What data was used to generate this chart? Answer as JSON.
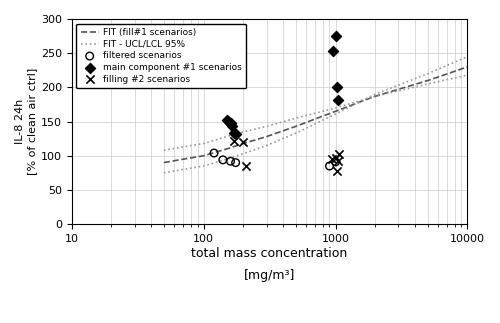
{
  "title": "",
  "xlabel": "total mass concentration",
  "xlabel2": "[mg/m³]",
  "ylabel": "IL-8 24h\n[% of clean air ctrl]",
  "xlim": [
    10,
    10000
  ],
  "ylim": [
    0,
    300
  ],
  "yticks": [
    0,
    50,
    100,
    150,
    200,
    250,
    300
  ],
  "fit_x": [
    50,
    70,
    100,
    150,
    200,
    300,
    500,
    800,
    1000,
    1500,
    2000,
    5000,
    10000
  ],
  "fit_y": [
    90,
    95,
    100,
    110,
    118,
    128,
    143,
    158,
    165,
    178,
    187,
    210,
    230
  ],
  "ucl_y": [
    75,
    80,
    85,
    95,
    103,
    115,
    133,
    152,
    161,
    178,
    190,
    220,
    245
  ],
  "lcl_y": [
    108,
    113,
    118,
    128,
    135,
    143,
    155,
    165,
    170,
    180,
    187,
    205,
    218
  ],
  "filtered_x": [
    120,
    140,
    160,
    175,
    900,
    1000
  ],
  "filtered_y": [
    104,
    94,
    92,
    90,
    85,
    91
  ],
  "main_comp_x": [
    150,
    155,
    160,
    165,
    170,
    175,
    950,
    1000,
    1020,
    1050
  ],
  "main_comp_y": [
    152,
    150,
    148,
    143,
    134,
    132,
    253,
    275,
    200,
    182
  ],
  "filling2_x": [
    170,
    200,
    210,
    940,
    1000,
    1020,
    1050,
    1060
  ],
  "filling2_y": [
    122,
    120,
    85,
    95,
    96,
    78,
    92,
    103
  ],
  "fit_color": "#555555",
  "ci_color": "#999999",
  "bg_color": "#ffffff"
}
